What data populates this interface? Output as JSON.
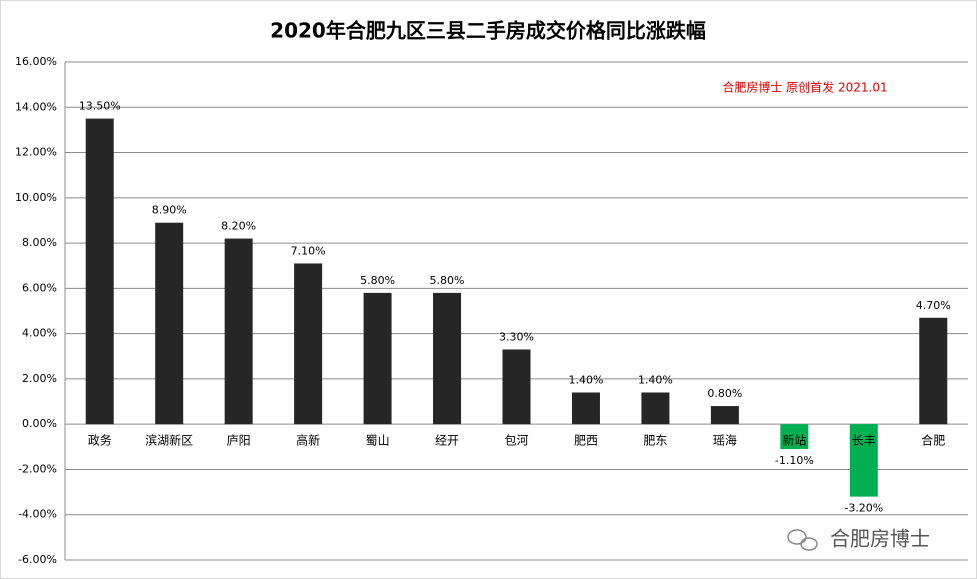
{
  "chart_data": {
    "type": "bar",
    "title": "2020年合肥九区三县二手房成交价格同比涨跌幅",
    "annotation": "合肥房博士 原创首发 2021.01",
    "watermark": "合肥房博士",
    "categories": [
      "政务",
      "滨湖新区",
      "庐阳",
      "高新",
      "蜀山",
      "经开",
      "包河",
      "肥西",
      "肥东",
      "瑶海",
      "新站",
      "长丰",
      "合肥"
    ],
    "values": [
      13.5,
      8.9,
      8.2,
      7.1,
      5.8,
      5.8,
      3.3,
      1.4,
      1.4,
      0.8,
      -1.1,
      -3.2,
      4.7
    ],
    "value_labels": [
      "13.50%",
      "8.90%",
      "8.20%",
      "7.10%",
      "5.80%",
      "5.80%",
      "3.30%",
      "1.40%",
      "1.40%",
      "0.80%",
      "-1.10%",
      "-3.20%",
      "4.70%"
    ],
    "color": "#262626",
    "negative_color": "#00b050",
    "ylim": [
      -6,
      16
    ],
    "yticks": [
      {
        "value": -6,
        "label": "-6.00%"
      },
      {
        "value": -4,
        "label": "-4.00%"
      },
      {
        "value": -2,
        "label": "-2.00%"
      },
      {
        "value": 0,
        "label": "0.00%"
      },
      {
        "value": 2,
        "label": "2.00%"
      },
      {
        "value": 4,
        "label": "4.00%"
      },
      {
        "value": 6,
        "label": "6.00%"
      },
      {
        "value": 8,
        "label": "8.00%"
      },
      {
        "value": 10,
        "label": "10.00%"
      },
      {
        "value": 12,
        "label": "12.00%"
      },
      {
        "value": 14,
        "label": "14.00%"
      },
      {
        "value": 16,
        "label": "16.00%"
      }
    ],
    "grid": true
  }
}
